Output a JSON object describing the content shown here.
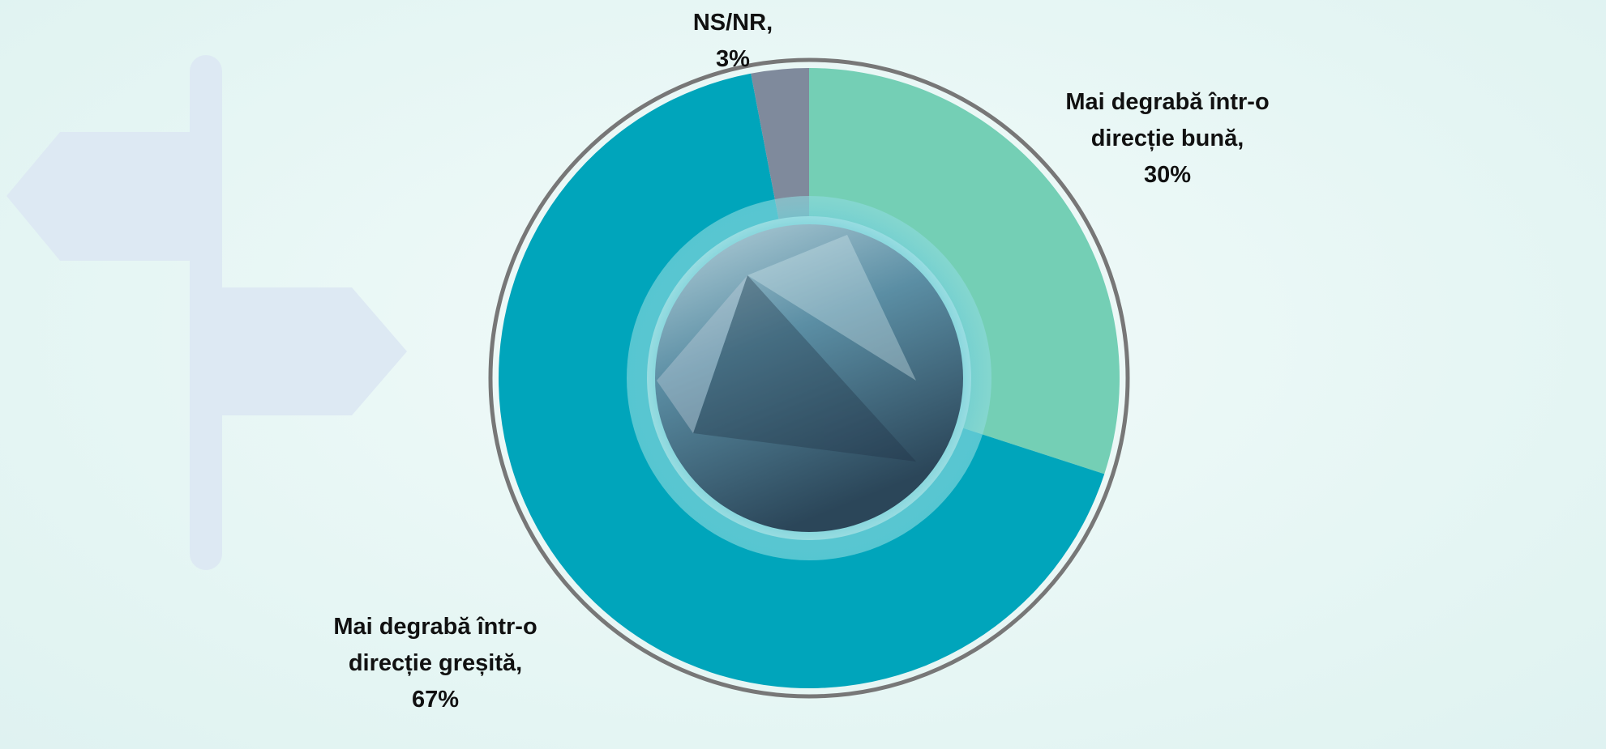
{
  "chart_data": {
    "type": "donut",
    "categories": [
      "Mai degrabă într-o direcție bună,",
      "Mai degrabă într-o direcție greșită,",
      "NS/NR,"
    ],
    "values": [
      30,
      67,
      3
    ],
    "value_labels": [
      "30%",
      "67%",
      "3%"
    ],
    "colors": [
      "#74cfb5",
      "#00a5bb",
      "#7f8a9c"
    ]
  }
}
